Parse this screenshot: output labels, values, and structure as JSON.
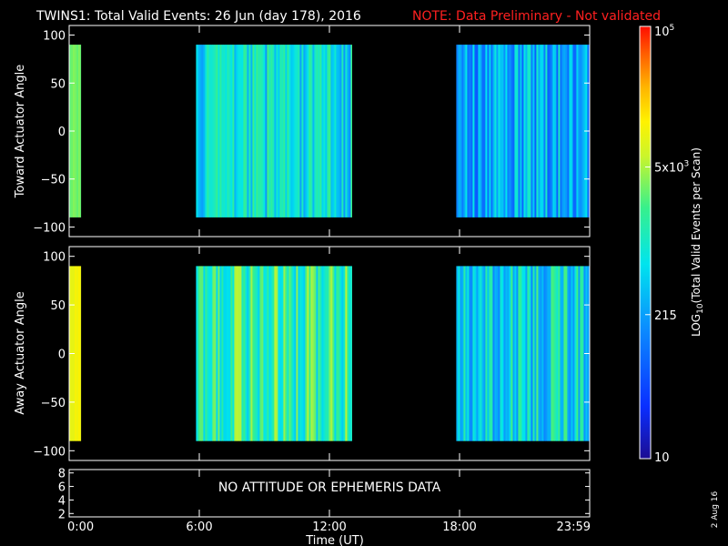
{
  "title": "TWINS1: Total Valid Events: 26 Jun (day 178), 2016",
  "note": "NOTE: Data Preliminary - Not validated",
  "colors": {
    "background": "#000000",
    "foreground": "#ffffff",
    "note": "#ff2020"
  },
  "chart_data": [
    {
      "type": "heatmap",
      "panel": "top",
      "ylabel": "Toward Actuator Angle",
      "xlim": [
        0,
        24
      ],
      "ylim": [
        -110,
        110
      ],
      "data_ylim": [
        -90,
        90
      ],
      "yticks": [
        100,
        50,
        0,
        -50,
        -100
      ],
      "ytick_labels": [
        "100",
        "50",
        "0",
        "-50",
        "-100"
      ],
      "blocks": [
        {
          "t_start": 0.0,
          "t_end": 0.55,
          "level": 0.63,
          "variability": 0.02
        },
        {
          "t_start": 5.85,
          "t_end": 13.05,
          "level": 0.45,
          "variability": 0.14
        },
        {
          "t_start": 17.85,
          "t_end": 24.0,
          "level": 0.36,
          "variability": 0.16
        }
      ]
    },
    {
      "type": "heatmap",
      "panel": "middle",
      "ylabel": "Away Actuator Angle",
      "xlim": [
        0,
        24
      ],
      "ylim": [
        -110,
        110
      ],
      "data_ylim": [
        -90,
        90
      ],
      "yticks": [
        100,
        50,
        0,
        -50,
        -100
      ],
      "ytick_labels": [
        "100",
        "50",
        "0",
        "-50",
        "-100"
      ],
      "blocks": [
        {
          "t_start": 0.0,
          "t_end": 0.55,
          "level": 0.76,
          "variability": 0.02
        },
        {
          "t_start": 5.85,
          "t_end": 13.05,
          "level": 0.55,
          "variability": 0.14
        },
        {
          "t_start": 17.85,
          "t_end": 24.0,
          "level": 0.45,
          "variability": 0.16
        }
      ]
    },
    {
      "type": "line",
      "panel": "bottom",
      "ylim": [
        1.5,
        8.5
      ],
      "yticks": [
        8,
        6,
        4,
        2
      ],
      "ytick_labels": [
        "8",
        "6",
        "4",
        "2"
      ],
      "message": "NO ATTITUDE OR EPHEMERIS DATA"
    }
  ],
  "x_axis": {
    "label": "Time (UT)",
    "xlim": [
      0,
      24
    ],
    "ticks": [
      0,
      6,
      12,
      18,
      24
    ],
    "tick_labels": [
      "0:00",
      "6:00",
      "12:00",
      "18:00",
      "23:59"
    ]
  },
  "colorbar": {
    "label": "LOG10(Total Valid Events per Scan)",
    "label_main": "LOG",
    "label_sub": "10",
    "label_rest": "(Total Valid Events per Scan)",
    "scale": "log",
    "range": [
      10,
      100000
    ],
    "ticks": [
      {
        "value": 10,
        "label": "10"
      },
      {
        "value": 215,
        "label": "215"
      },
      {
        "value": 5000,
        "label_base": "5x10",
        "label_exp": "3"
      },
      {
        "value": 100000,
        "label_base": "10",
        "label_exp": "5"
      }
    ]
  },
  "date_stamp": "2 Aug 16"
}
